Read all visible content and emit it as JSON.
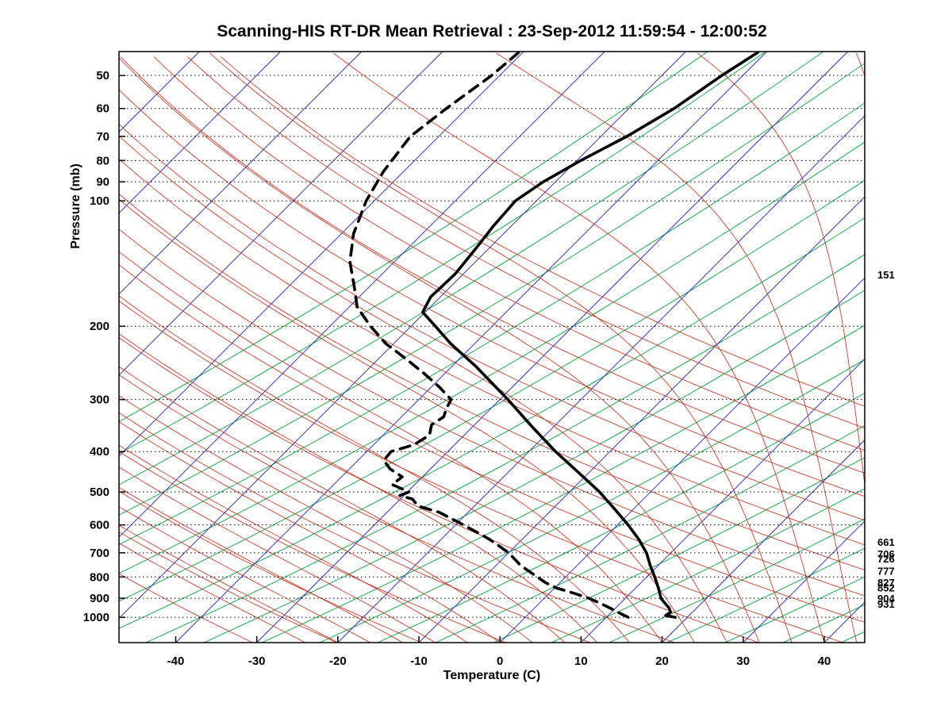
{
  "chart_data": {
    "type": "line",
    "variant": "skew-t-log-p-sounding",
    "title": "Scanning-HIS RT-DR Mean Retrieval : 23-Sep-2012 11:59:54 - 12:00:52",
    "xlabel": "Temperature (C)",
    "ylabel": "Pressure (mb)",
    "x_ticks": [
      -40,
      -30,
      -20,
      -10,
      0,
      10,
      20,
      30,
      40
    ],
    "y_ticks": [
      50,
      60,
      70,
      80,
      90,
      100,
      200,
      300,
      400,
      500,
      600,
      700,
      800,
      900,
      1000
    ],
    "x_range": [
      -47,
      45
    ],
    "p_range": [
      43.8,
      1150
    ],
    "skew_deg": 45,
    "grid": "dotted horizontal lines at labeled pressures",
    "legend": "none",
    "series": [
      {
        "name": "Temperature",
        "line": "solid",
        "color": "#000000",
        "points_p_t": [
          [
            1000,
            18.5
          ],
          [
            990,
            17.1
          ],
          [
            972,
            17.3
          ],
          [
            950,
            16.6
          ],
          [
            925,
            15.5
          ],
          [
            900,
            14.4
          ],
          [
            850,
            12.8
          ],
          [
            800,
            11.0
          ],
          [
            750,
            9.0
          ],
          [
            700,
            7.0
          ],
          [
            650,
            4.4
          ],
          [
            600,
            1.3
          ],
          [
            550,
            -2.3
          ],
          [
            500,
            -6.3
          ],
          [
            450,
            -11.2
          ],
          [
            400,
            -16.7
          ],
          [
            350,
            -22.5
          ],
          [
            300,
            -29.0
          ],
          [
            250,
            -37.0
          ],
          [
            220,
            -43.0
          ],
          [
            200,
            -47.0
          ],
          [
            185,
            -50.3
          ],
          [
            170,
            -51.2
          ],
          [
            150,
            -51.0
          ],
          [
            130,
            -51.6
          ],
          [
            115,
            -52.2
          ],
          [
            100,
            -52.6
          ],
          [
            90,
            -51.5
          ],
          [
            80,
            -49.5
          ],
          [
            70,
            -46.8
          ],
          [
            60,
            -44.4
          ],
          [
            50,
            -42.6
          ],
          [
            44,
            -41.0
          ]
        ]
      },
      {
        "name": "Dew Point",
        "line": "dashed",
        "color": "#000000",
        "points_p_t": [
          [
            1000,
            12.7
          ],
          [
            975,
            11.0
          ],
          [
            950,
            9.3
          ],
          [
            925,
            7.5
          ],
          [
            900,
            5.5
          ],
          [
            875,
            3.0
          ],
          [
            850,
            0.2
          ],
          [
            825,
            -1.8
          ],
          [
            800,
            -3.5
          ],
          [
            750,
            -7.0
          ],
          [
            700,
            -10.0
          ],
          [
            650,
            -14.0
          ],
          [
            600,
            -19.0
          ],
          [
            560,
            -23.5
          ],
          [
            540,
            -27.0
          ],
          [
            520,
            -28.5
          ],
          [
            510,
            -30.5
          ],
          [
            500,
            -29.8
          ],
          [
            480,
            -32.8
          ],
          [
            460,
            -32.5
          ],
          [
            440,
            -35.0
          ],
          [
            420,
            -36.8
          ],
          [
            400,
            -37.0
          ],
          [
            385,
            -35.0
          ],
          [
            365,
            -34.3
          ],
          [
            345,
            -35.3
          ],
          [
            330,
            -34.8
          ],
          [
            315,
            -35.5
          ],
          [
            300,
            -36.0
          ],
          [
            280,
            -39.0
          ],
          [
            260,
            -42.5
          ],
          [
            240,
            -46.5
          ],
          [
            220,
            -51.0
          ],
          [
            200,
            -55.0
          ],
          [
            180,
            -59.0
          ],
          [
            160,
            -62.0
          ],
          [
            140,
            -65.5
          ],
          [
            120,
            -68.5
          ],
          [
            100,
            -71.0
          ],
          [
            85,
            -72.5
          ],
          [
            70,
            -73.5
          ],
          [
            60,
            -72.5
          ],
          [
            50,
            -71.0
          ],
          [
            44,
            -70.5
          ]
        ]
      }
    ],
    "level_labels": [
      {
        "pressure": 151,
        "label": "151"
      },
      {
        "pressure": 661,
        "label": "661"
      },
      {
        "pressure": 706,
        "label": "706"
      },
      {
        "pressure": 726,
        "label": "726"
      },
      {
        "pressure": 777,
        "label": "777"
      },
      {
        "pressure": 827,
        "label": "827"
      },
      {
        "pressure": 852,
        "label": "852"
      },
      {
        "pressure": 904,
        "label": "904"
      },
      {
        "pressure": 931,
        "label": "931"
      }
    ],
    "background": {
      "isotherms": {
        "color": "#2020c8",
        "min": -120,
        "max": 40,
        "step": 10
      },
      "dry_adiabats": {
        "color": "#c82814",
        "min": -40,
        "max": 130,
        "step": 10
      },
      "pseudoadiabats": {
        "color": "#c82814",
        "min": -24,
        "max": 56,
        "step": 4
      },
      "isohumes": {
        "color": "#00a43c",
        "slope_deg": 30,
        "x_start_min": -400,
        "x_start_max": 1060,
        "spacing": 73
      },
      "gridline_color": "#000000"
    }
  }
}
